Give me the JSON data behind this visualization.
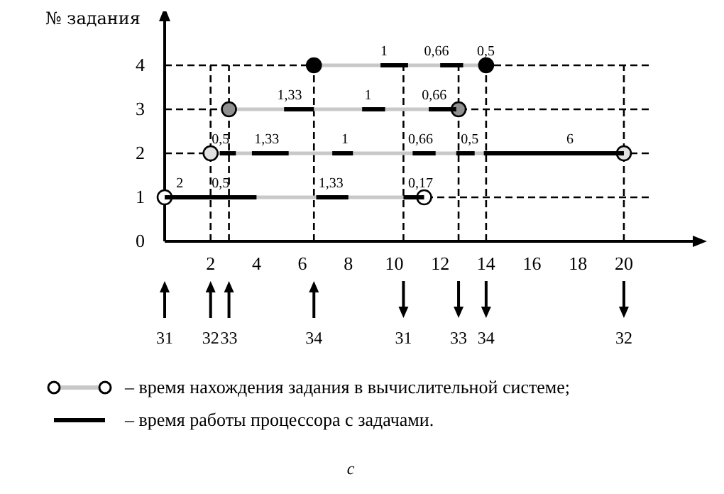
{
  "chart_data": {
    "type": "line",
    "ylabel": "№ задания",
    "xlim": [
      0,
      23
    ],
    "ylim": [
      0,
      5
    ],
    "xticks": [
      2,
      4,
      6,
      8,
      10,
      12,
      14,
      16,
      18,
      20
    ],
    "yticks": [
      0,
      1,
      2,
      3,
      4
    ],
    "grid": false,
    "legend": "bottom",
    "marker": "circle",
    "series": [
      {
        "name": "– время нахождения задания в вычислительной системе;",
        "color": "#c8c8c8",
        "colors": [
          "#ffffff",
          "#ffffff"
        ],
        "x": [
          0,
          11.3
        ],
        "values": [
          1,
          1
        ]
      },
      {
        "color": "#c8c8c8",
        "colors": [
          "#e0e0e0",
          "#e0e0e0"
        ],
        "x": [
          2,
          20
        ],
        "values": [
          2,
          2
        ]
      },
      {
        "color": "#c8c8c8",
        "colors": [
          "#909090",
          "#909090"
        ],
        "x": [
          2.8,
          12.8
        ],
        "values": [
          3,
          3
        ]
      },
      {
        "color": "#c8c8c8",
        "colors": [
          "#000000",
          "#000000"
        ],
        "x": [
          6.5,
          14
        ],
        "values": [
          4,
          4
        ]
      },
      {
        "name": "– время работы процессора с задачами.",
        "color": "#000000",
        "marker": "none",
        "x": [
          0,
          4.0,
          null,
          6.6,
          8.0,
          null,
          10.4,
          11.3,
          null,
          2.4,
          3.1,
          null,
          3.8,
          5.4,
          null,
          7.3,
          8.2,
          null,
          10.8,
          11.8,
          null,
          12.7,
          13.5,
          null,
          13.9,
          20,
          null,
          5.2,
          6.5,
          null,
          8.6,
          9.6,
          null,
          11.5,
          12.7,
          null,
          9.4,
          10.6,
          null,
          12.0,
          13.0
        ],
        "values": [
          1,
          1,
          null,
          1,
          1,
          null,
          1,
          1,
          null,
          2,
          2,
          null,
          2,
          2,
          null,
          2,
          2,
          null,
          2,
          2,
          null,
          2,
          2,
          null,
          2,
          2,
          null,
          3,
          3,
          null,
          3,
          3,
          null,
          3,
          3,
          null,
          4,
          4,
          null,
          4,
          4
        ]
      }
    ],
    "ref_lines": [
      {
        "axis": "y",
        "value": 1,
        "line_style": "dashed"
      },
      {
        "axis": "y",
        "value": 2,
        "line_style": "dashed"
      },
      {
        "axis": "y",
        "value": 3,
        "line_style": "dashed"
      },
      {
        "axis": "y",
        "value": 4,
        "line_style": "dashed"
      },
      {
        "axis": "x",
        "value": 2,
        "line_style": "dashed"
      },
      {
        "axis": "x",
        "value": 2.8,
        "line_style": "dashed"
      },
      {
        "axis": "x",
        "value": 6.5,
        "line_style": "dashed"
      },
      {
        "axis": "x",
        "value": 10.4,
        "line_style": "dashed"
      },
      {
        "axis": "x",
        "value": 12.8,
        "line_style": "dashed"
      },
      {
        "axis": "x",
        "value": 14,
        "line_style": "dashed"
      },
      {
        "axis": "x",
        "value": 20,
        "line_style": "dashed"
      }
    ],
    "annotations": [
      {
        "text": "2",
        "x": 0.5,
        "y": 1
      },
      {
        "text": "0,5",
        "x": 2.05,
        "y": 1
      },
      {
        "text": "1,33",
        "x": 6.7,
        "y": 1
      },
      {
        "text": "0,17",
        "x": 10.6,
        "y": 1
      },
      {
        "text": "0,5",
        "x": 2.05,
        "y": 2
      },
      {
        "text": "1,33",
        "x": 3.9,
        "y": 2
      },
      {
        "text": "1",
        "x": 7.7,
        "y": 2
      },
      {
        "text": "0,66",
        "x": 10.6,
        "y": 2
      },
      {
        "text": "0,5",
        "x": 12.9,
        "y": 2
      },
      {
        "text": "6",
        "x": 17.5,
        "y": 2
      },
      {
        "text": "1,33",
        "x": 4.9,
        "y": 3
      },
      {
        "text": "1",
        "x": 8.7,
        "y": 3
      },
      {
        "text": "0,66",
        "x": 11.2,
        "y": 3
      },
      {
        "text": "1",
        "x": 9.4,
        "y": 4
      },
      {
        "text": "0,66",
        "x": 11.3,
        "y": 4
      },
      {
        "text": "0,5",
        "x": 13.6,
        "y": 4
      },
      "31",
      "32",
      "33",
      "34",
      "31",
      "33",
      "34",
      "32",
      "c"
    ]
  }
}
